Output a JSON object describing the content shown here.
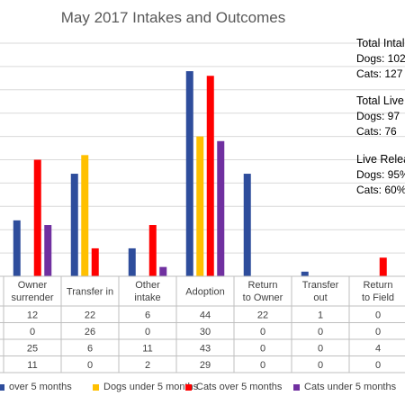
{
  "chart_data": {
    "type": "bar",
    "title": "May 2017 Intakes and Outcomes",
    "categories": [
      "Owner surrender",
      "Transfer in",
      "Other intake",
      "Adoption",
      "Return to Owner",
      "Transfer out",
      "Return to Field"
    ],
    "series": [
      {
        "name": "Dogs over 5 months",
        "color": "#2e4d9c",
        "values": [
          12,
          22,
          6,
          44,
          22,
          1,
          0
        ]
      },
      {
        "name": "Dogs under 5 months",
        "color": "#ffc000",
        "values": [
          0,
          26,
          0,
          30,
          0,
          0,
          0
        ]
      },
      {
        "name": "Cats over 5 months",
        "color": "#ff0000",
        "values": [
          25,
          6,
          11,
          43,
          0,
          0,
          4
        ]
      },
      {
        "name": "Cats under 5 months",
        "color": "#7030a0",
        "values": [
          11,
          0,
          2,
          29,
          0,
          0,
          0
        ]
      }
    ],
    "legend_labels": [
      "over 5 months",
      "Dogs under 5 months",
      "Cats over 5 months",
      "Cats under 5 months"
    ],
    "ylim": [
      0,
      50
    ],
    "grid": true,
    "legend_position": "bottom"
  },
  "side_stats": [
    {
      "heading": "Total Intal",
      "lines": [
        "Dogs: 102",
        "Cats: 127"
      ]
    },
    {
      "heading": "Total Live",
      "lines": [
        "Dogs: 97",
        "Cats: 76"
      ]
    },
    {
      "heading": "Live Relea",
      "lines": [
        "Dogs: 95%",
        "Cats: 60%"
      ]
    }
  ]
}
